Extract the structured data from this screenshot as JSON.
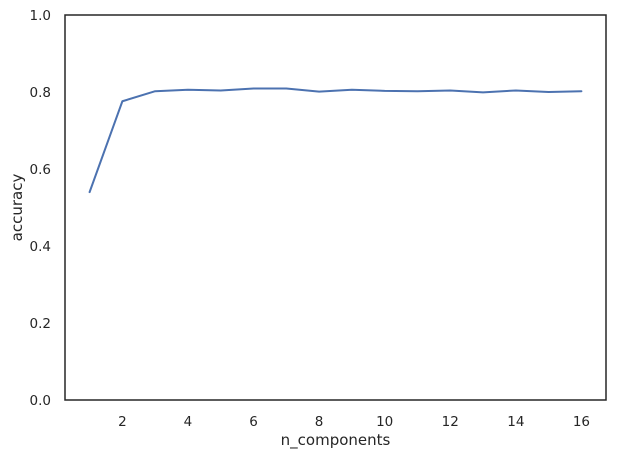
{
  "chart_data": {
    "type": "line",
    "title": "",
    "xlabel": "n_components",
    "ylabel": "accuracy",
    "xlim": [
      0.25,
      16.75
    ],
    "ylim": [
      0.0,
      1.0
    ],
    "xticks": [
      2,
      4,
      6,
      8,
      10,
      12,
      14,
      16
    ],
    "yticks": [
      0.0,
      0.2,
      0.4,
      0.6,
      0.8,
      1.0
    ],
    "xtick_labels": [
      "2",
      "4",
      "6",
      "8",
      "10",
      "12",
      "14",
      "16"
    ],
    "ytick_labels": [
      "0.0",
      "0.2",
      "0.4",
      "0.6",
      "0.8",
      "1.0"
    ],
    "grid": false,
    "series": [
      {
        "name": "accuracy",
        "color": "#4c72b0",
        "x": [
          1,
          2,
          3,
          4,
          5,
          6,
          7,
          8,
          9,
          10,
          11,
          12,
          13,
          14,
          15,
          16
        ],
        "y": [
          0.54,
          0.776,
          0.802,
          0.806,
          0.804,
          0.809,
          0.809,
          0.801,
          0.806,
          0.803,
          0.802,
          0.804,
          0.799,
          0.804,
          0.8,
          0.802
        ]
      }
    ]
  }
}
